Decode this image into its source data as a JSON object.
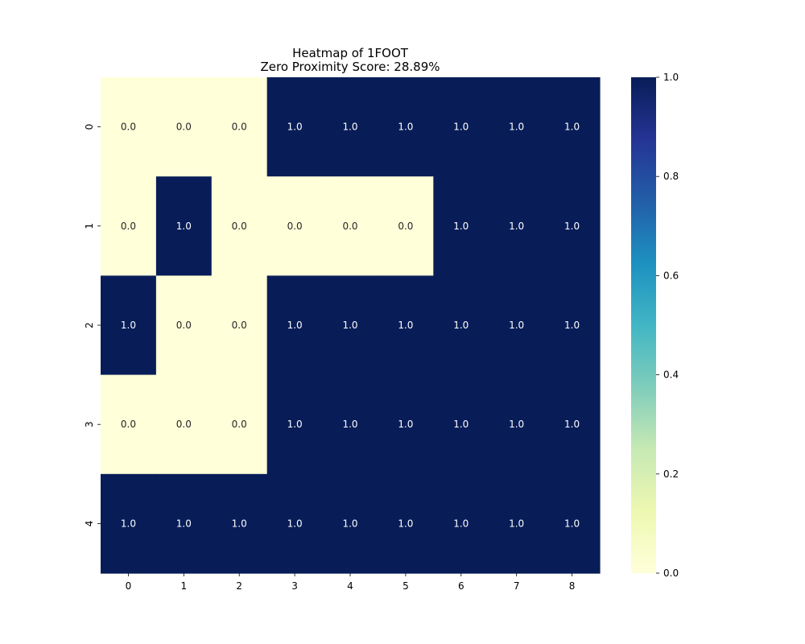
{
  "chart_data": {
    "type": "heatmap",
    "title_lines": [
      "Heatmap of 1FOOT",
      "Zero Proximity Score: 28.89%"
    ],
    "x_categories": [
      "0",
      "1",
      "2",
      "3",
      "4",
      "5",
      "6",
      "7",
      "8"
    ],
    "y_categories": [
      "0",
      "1",
      "2",
      "3",
      "4"
    ],
    "values": [
      [
        0,
        0,
        0,
        1,
        1,
        1,
        1,
        1,
        1
      ],
      [
        0,
        1,
        0,
        0,
        0,
        0,
        1,
        1,
        1
      ],
      [
        1,
        0,
        0,
        1,
        1,
        1,
        1,
        1,
        1
      ],
      [
        0,
        0,
        0,
        1,
        1,
        1,
        1,
        1,
        1
      ],
      [
        1,
        1,
        1,
        1,
        1,
        1,
        1,
        1,
        1
      ]
    ],
    "value_format": "0.0",
    "xlabel": "",
    "ylabel": "",
    "colorbar": {
      "colormap": "YlGnBu",
      "range": [
        0.0,
        1.0
      ],
      "ticks": [
        "0.0",
        "0.2",
        "0.4",
        "0.6",
        "0.8",
        "1.0"
      ]
    },
    "colors": {
      "low": "#ffffd9",
      "high": "#081d58",
      "label_on_low": "#262626",
      "label_on_high": "#ffffff"
    },
    "grid": false
  }
}
